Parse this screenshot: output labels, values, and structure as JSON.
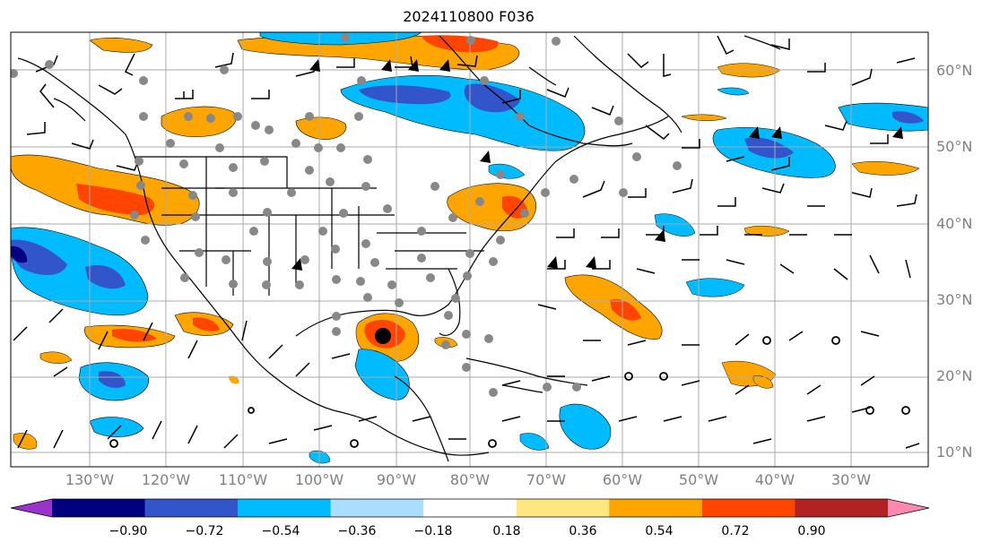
{
  "title": "2024110800 F036",
  "lat_labels": [
    "60°N",
    "50°N",
    "40°N",
    "30°N",
    "20°N",
    "10°N"
  ],
  "lon_labels": [
    "130°W",
    "120°W",
    "110°W",
    "100°W",
    "90°W",
    "80°W",
    "70°W",
    "60°W",
    "50°W",
    "40°W",
    "30°W"
  ],
  "colorbar": {
    "colors": [
      "#9933cc",
      "#000080",
      "#3355cc",
      "#00bbff",
      "#aaddff",
      "#ffffff",
      "#ffe680",
      "#ffa500",
      "#ff4500",
      "#b22222",
      "#ff88b0"
    ],
    "ticks": [
      "−0.90",
      "−0.72",
      "−0.54",
      "−0.36",
      "−0.18",
      "0.18",
      "0.36",
      "0.54",
      "0.72",
      "0.90"
    ]
  },
  "icons": {
    "storm_center": "black-filled-circle",
    "station": "gray-filled-circle",
    "calm_wind": "open-circle",
    "wind_barb": "wind-barb"
  }
}
